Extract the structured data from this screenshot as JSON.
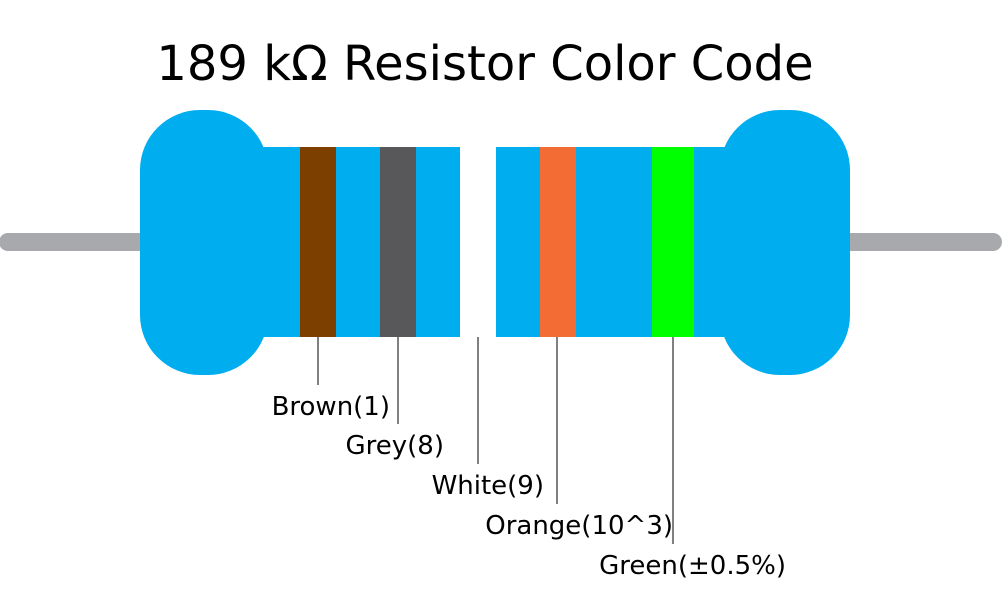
{
  "title": "189 kΩ Resistor Color Code",
  "colors": {
    "body": "#00adef",
    "lead": "#a7a9ac",
    "label_line": "#000000",
    "text": "#000000"
  },
  "bands": [
    {
      "name": "Brown",
      "color": "#7c3f00",
      "label": "Brown(1)"
    },
    {
      "name": "Grey",
      "color": "#58585b",
      "label": "Grey(8)"
    },
    {
      "name": "White",
      "color": "#ffffff",
      "label": "White(9)"
    },
    {
      "name": "Orange",
      "color": "#f26c34",
      "label": "Orange(10^3)"
    },
    {
      "name": "Green",
      "color": "#00ff00",
      "label": "Green(±0.5%)"
    }
  ]
}
